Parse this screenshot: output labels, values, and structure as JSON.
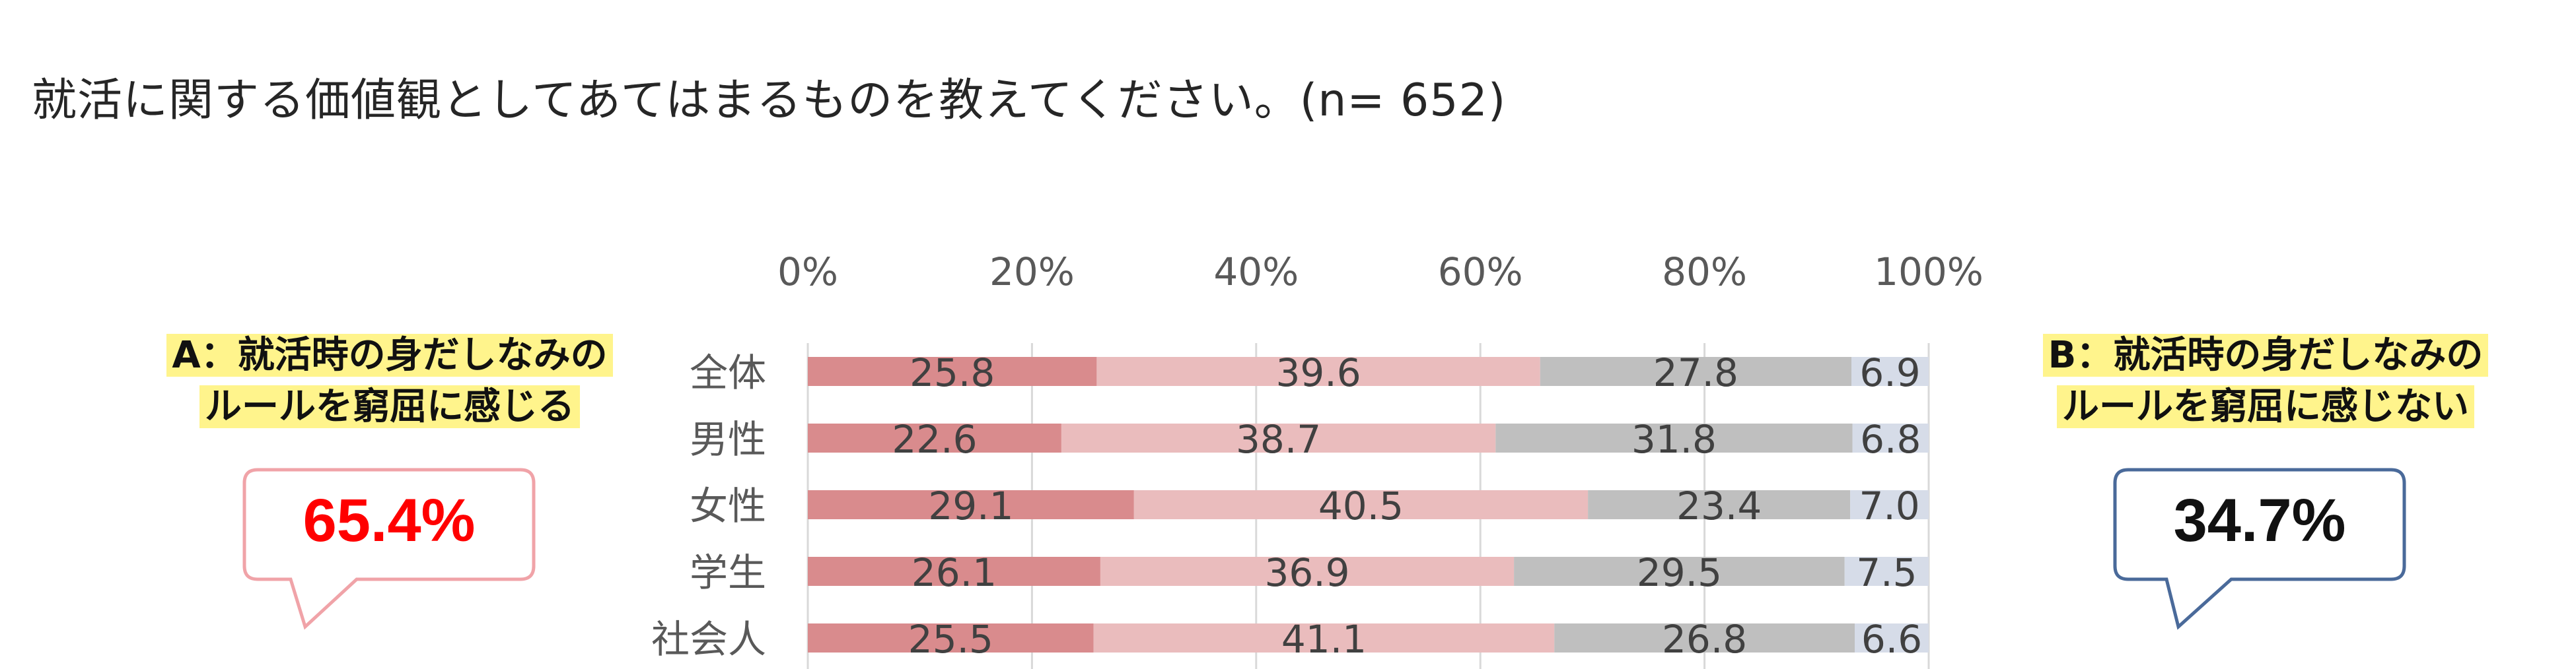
{
  "title": "就活に関する価値観としてあてはまるものを教えてください。(n= 652)",
  "colors": {
    "seg1": "#d98b8d",
    "seg2": "#eabcbd",
    "seg3": "#bfbfbf",
    "seg4": "#d6dce8",
    "bubble_a_border": "#f0a3a8",
    "bubble_a_text": "#ff0000",
    "bubble_b_border": "#4a6a9a",
    "bubble_b_text": "#111111",
    "highlight": "#fff48c"
  },
  "callout_a": {
    "line1": "A：就活時の身だしなみの",
    "line2": "ルールを窮屈に感じる",
    "value": "65.4%"
  },
  "callout_b": {
    "line1": "B：就活時の身だしなみの",
    "line2": "ルールを窮屈に感じない",
    "value": "34.7%"
  },
  "chart_data": {
    "type": "bar",
    "orientation": "horizontal",
    "stacked": true,
    "percent_stacked": true,
    "categories": [
      "全体",
      "男性",
      "女性",
      "学生",
      "社会人"
    ],
    "series": [
      {
        "values": [
          25.8,
          22.6,
          29.1,
          26.1,
          25.5
        ]
      },
      {
        "values": [
          39.6,
          38.7,
          40.5,
          36.9,
          41.1
        ]
      },
      {
        "values": [
          27.8,
          31.8,
          23.4,
          29.5,
          26.8
        ]
      },
      {
        "values": [
          6.9,
          6.8,
          7.0,
          7.5,
          6.6
        ]
      }
    ],
    "x_ticks": [
      "0%",
      "20%",
      "40%",
      "60%",
      "80%",
      "100%"
    ],
    "xlim": [
      0,
      100
    ],
    "axis_position": "top",
    "grid": true,
    "data_labels": true
  }
}
